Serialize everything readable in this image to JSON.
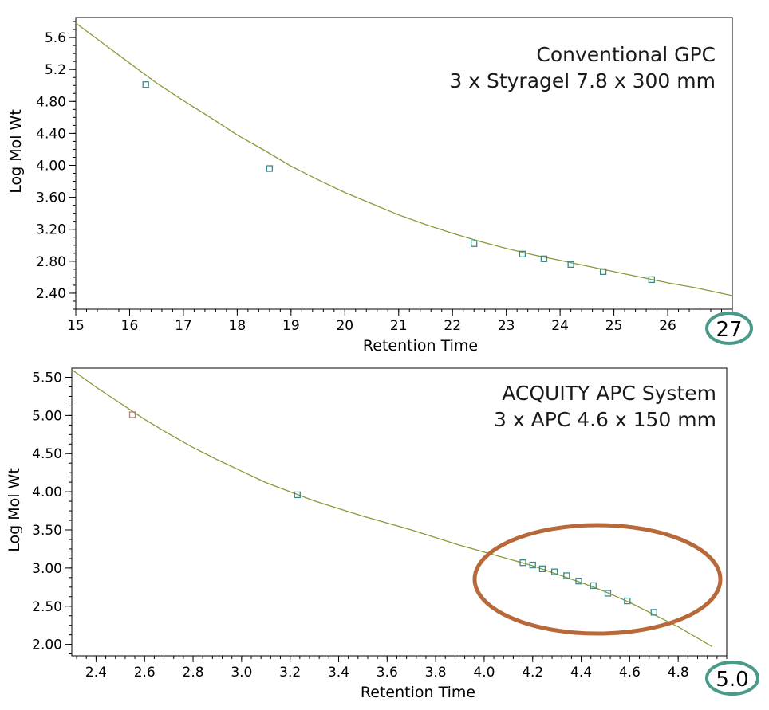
{
  "colors": {
    "axis": "#000000",
    "curve": "#8a9a3a",
    "marker": "#3a8a8a",
    "marker_first_bottom": "#b08080",
    "oval": "#b8693a",
    "badge": "#4a9a8a"
  },
  "chart_data": [
    {
      "type": "line",
      "title": "Conventional GPC",
      "subtitle": "3 x Styragel 7.8 x 300 mm",
      "xlabel": "Retention Time",
      "ylabel": "Log Mol Wt",
      "xlim": [
        15,
        27.2
      ],
      "ylim": [
        2.2,
        5.85
      ],
      "xticks": [
        15,
        16,
        17,
        18,
        19,
        20,
        21,
        22,
        23,
        24,
        25,
        26
      ],
      "yticks": [
        2.4,
        2.8,
        3.2,
        3.6,
        4.0,
        4.4,
        4.8,
        5.2,
        5.6
      ],
      "ytick_labels": [
        "2.40",
        "2.80",
        "3.20",
        "3.60",
        "4.00",
        "4.40",
        "4.80",
        "5.2",
        "5.6"
      ],
      "curve_x": [
        15,
        15.5,
        16,
        16.5,
        17,
        17.5,
        18,
        18.5,
        19,
        19.5,
        20,
        20.5,
        21,
        21.5,
        22,
        22.5,
        23,
        23.5,
        24,
        24.5,
        25,
        25.5,
        26,
        26.5,
        27.2
      ],
      "curve_y": [
        5.78,
        5.53,
        5.28,
        5.03,
        4.81,
        4.6,
        4.38,
        4.19,
        3.99,
        3.82,
        3.66,
        3.52,
        3.38,
        3.26,
        3.15,
        3.05,
        2.96,
        2.88,
        2.81,
        2.74,
        2.67,
        2.6,
        2.53,
        2.47,
        2.37
      ],
      "points": [
        {
          "x": 16.3,
          "y": 5.01
        },
        {
          "x": 18.6,
          "y": 3.96
        },
        {
          "x": 22.4,
          "y": 3.02
        },
        {
          "x": 23.3,
          "y": 2.89
        },
        {
          "x": 23.7,
          "y": 2.83
        },
        {
          "x": 24.2,
          "y": 2.76
        },
        {
          "x": 24.8,
          "y": 2.67
        },
        {
          "x": 25.7,
          "y": 2.57
        }
      ],
      "badge": "27"
    },
    {
      "type": "line",
      "title": "ACQUITY APC System",
      "subtitle": "3 x APC 4.6 x 150 mm",
      "xlabel": "Retention Time",
      "ylabel": "Log Mol Wt",
      "xlim": [
        2.3,
        5.0
      ],
      "ylim": [
        1.85,
        5.62
      ],
      "xticks": [
        2.4,
        2.6,
        2.8,
        3.0,
        3.2,
        3.4,
        3.6,
        3.8,
        4.0,
        4.2,
        4.4,
        4.6,
        4.8
      ],
      "xtick_labels": [
        "2.4",
        "2.6",
        "2.8",
        "3.0",
        "3.2",
        "3.4",
        "3.6",
        "3.8",
        "4.0",
        "4.2",
        "4.4",
        "4.6",
        "4.8"
      ],
      "yticks": [
        2.0,
        2.5,
        3.0,
        3.5,
        4.0,
        4.5,
        5.0,
        5.5
      ],
      "ytick_labels": [
        "2.00",
        "2.50",
        "3.00",
        "3.50",
        "4.00",
        "4.50",
        "5.00",
        "5.50"
      ],
      "curve_x": [
        2.3,
        2.4,
        2.5,
        2.6,
        2.7,
        2.8,
        2.9,
        3.0,
        3.1,
        3.2,
        3.3,
        3.4,
        3.5,
        3.6,
        3.7,
        3.8,
        3.9,
        4.0,
        4.1,
        4.2,
        4.3,
        4.4,
        4.5,
        4.6,
        4.7,
        4.8,
        4.94
      ],
      "curve_y": [
        5.6,
        5.37,
        5.16,
        4.95,
        4.76,
        4.58,
        4.42,
        4.27,
        4.12,
        4.0,
        3.88,
        3.78,
        3.68,
        3.59,
        3.5,
        3.4,
        3.3,
        3.21,
        3.12,
        3.03,
        2.92,
        2.81,
        2.69,
        2.55,
        2.39,
        2.23,
        1.97
      ],
      "points": [
        {
          "x": 2.55,
          "y": 5.01,
          "first": true
        },
        {
          "x": 3.23,
          "y": 3.96
        },
        {
          "x": 4.16,
          "y": 3.07
        },
        {
          "x": 4.2,
          "y": 3.04
        },
        {
          "x": 4.24,
          "y": 2.99
        },
        {
          "x": 4.29,
          "y": 2.95
        },
        {
          "x": 4.34,
          "y": 2.9
        },
        {
          "x": 4.39,
          "y": 2.83
        },
        {
          "x": 4.45,
          "y": 2.77
        },
        {
          "x": 4.51,
          "y": 2.67
        },
        {
          "x": 4.59,
          "y": 2.57
        },
        {
          "x": 4.7,
          "y": 2.42
        }
      ],
      "badge": "5.0"
    }
  ]
}
